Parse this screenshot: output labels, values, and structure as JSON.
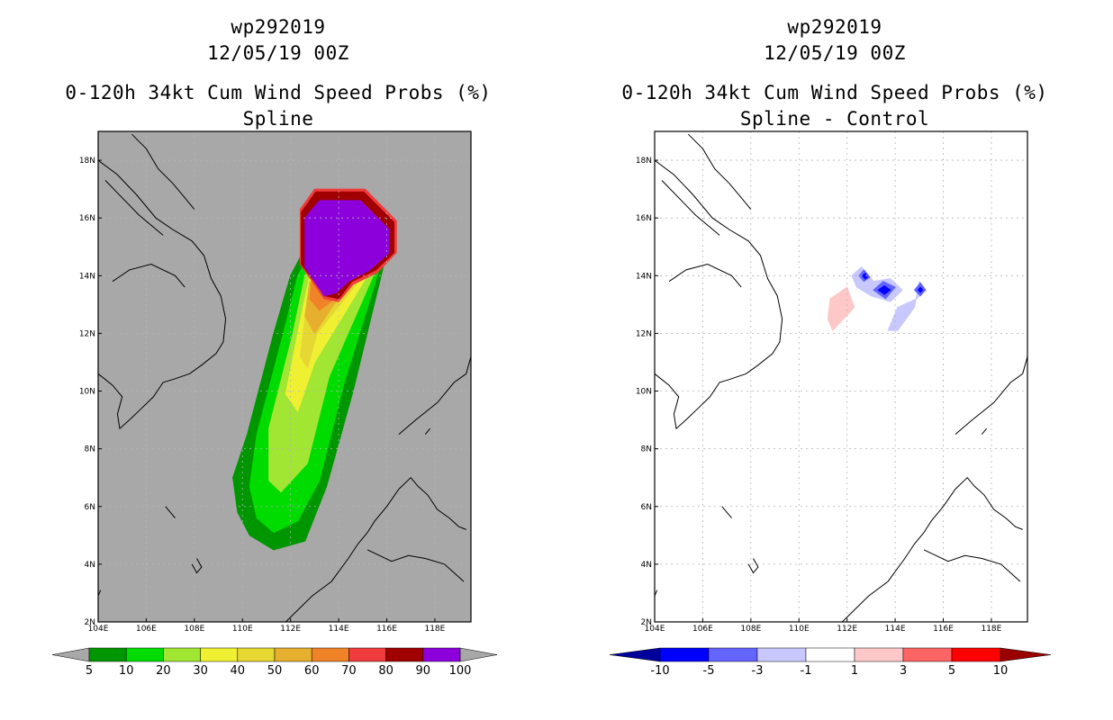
{
  "chart_data": [
    {
      "type": "heatmap",
      "id": "spline",
      "title": [
        "wp292019",
        "12/05/19 00Z",
        "0-120h 34kt Cum Wind Speed Probs (%)",
        "Spline"
      ],
      "xlabel": "",
      "ylabel": "",
      "xlim": [
        104,
        119.5
      ],
      "ylim": [
        2,
        19
      ],
      "x_ticks": [
        "104E",
        "106E",
        "108E",
        "110E",
        "112E",
        "114E",
        "116E",
        "118E"
      ],
      "y_ticks": [
        "2N",
        "4N",
        "6N",
        "8N",
        "10N",
        "12N",
        "14N",
        "16N",
        "18N"
      ],
      "background_color": "#a8a8a8",
      "grid": true,
      "colorbar": {
        "labels": [
          "5",
          "10",
          "20",
          "30",
          "40",
          "50",
          "60",
          "70",
          "80",
          "90",
          "100"
        ],
        "colors": [
          "#009600",
          "#00dc00",
          "#a0e632",
          "#f0f032",
          "#e6d732",
          "#e6af2d",
          "#f08228",
          "#f03c3c",
          "#a00000",
          "#8c00dc"
        ],
        "end_color": "#a8a8a8"
      },
      "contours": [
        {
          "level": 5,
          "color": "#009600",
          "points": [
            [
              114.3,
              14.8
            ],
            [
              116,
              14.8
            ],
            [
              114.6,
              10
            ],
            [
              113.5,
              6.7
            ],
            [
              112.6,
              4.8
            ],
            [
              111.3,
              4.5
            ],
            [
              110.3,
              5
            ],
            [
              109.8,
              5.8
            ],
            [
              109.6,
              7
            ],
            [
              110.2,
              8.5
            ],
            [
              111.3,
              12
            ],
            [
              112,
              14
            ],
            [
              113,
              15.6
            ],
            [
              114,
              15.4
            ]
          ]
        },
        {
          "level": 10,
          "color": "#00dc00",
          "points": [
            [
              114.3,
              14.7
            ],
            [
              115.9,
              14.8
            ],
            [
              114.2,
              10.2
            ],
            [
              113.2,
              6.9
            ],
            [
              112.3,
              5.5
            ],
            [
              111.3,
              5.1
            ],
            [
              110.6,
              5.6
            ],
            [
              110.3,
              6.7
            ],
            [
              110.6,
              8.5
            ],
            [
              111.7,
              12
            ],
            [
              112.3,
              14
            ],
            [
              113.2,
              15.3
            ],
            [
              114,
              15.2
            ]
          ]
        },
        {
          "level": 20,
          "color": "#a0e632",
          "points": [
            [
              114.3,
              14.5
            ],
            [
              115.8,
              14.7
            ],
            [
              113.6,
              10.5
            ],
            [
              112.7,
              7.5
            ],
            [
              111.6,
              6.5
            ],
            [
              111.1,
              6.9
            ],
            [
              111.1,
              8.7
            ],
            [
              112.1,
              12
            ],
            [
              112.6,
              14
            ],
            [
              113.4,
              15
            ],
            [
              114,
              15
            ]
          ]
        },
        {
          "level": 30,
          "color": "#f0f032",
          "points": [
            [
              114,
              14.3
            ],
            [
              115.7,
              14.7
            ],
            [
              113,
              11
            ],
            [
              112.3,
              9.3
            ],
            [
              111.8,
              9.9
            ],
            [
              112.3,
              12
            ],
            [
              112.8,
              14
            ],
            [
              113.5,
              14.7
            ]
          ]
        },
        {
          "level": 40,
          "color": "#e6d732",
          "points": [
            [
              113.8,
              14
            ],
            [
              115.6,
              14.6
            ],
            [
              113.1,
              12
            ],
            [
              112.7,
              10.8
            ],
            [
              112.4,
              11.2
            ],
            [
              112.6,
              12.5
            ],
            [
              113.1,
              14
            ]
          ]
        },
        {
          "level": 50,
          "color": "#e6af2d",
          "points": [
            [
              113.5,
              13.5
            ],
            [
              115.5,
              14.6
            ],
            [
              113.8,
              13
            ],
            [
              113,
              12
            ],
            [
              112.6,
              12.6
            ],
            [
              112.8,
              13.8
            ]
          ]
        },
        {
          "level": 60,
          "color": "#f08228",
          "points": [
            [
              113.4,
              13.4
            ],
            [
              115.4,
              14.6
            ],
            [
              114,
              13.3
            ],
            [
              113.2,
              12.8
            ],
            [
              112.8,
              13.2
            ],
            [
              112.9,
              14
            ]
          ]
        },
        {
          "level": 70,
          "color": "#f03c3c",
          "points": [
            [
              112.4,
              16.3
            ],
            [
              113,
              17
            ],
            [
              115.1,
              17
            ],
            [
              116.4,
              15.9
            ],
            [
              116.4,
              14.8
            ],
            [
              115.6,
              14.1
            ],
            [
              114.6,
              13.7
            ],
            [
              114,
              13.1
            ],
            [
              113.4,
              13.2
            ],
            [
              112.4,
              14.4
            ]
          ]
        },
        {
          "level": 80,
          "color": "#a00000",
          "points": [
            [
              112.45,
              16.2
            ],
            [
              113.05,
              16.9
            ],
            [
              115.05,
              16.9
            ],
            [
              116.3,
              15.85
            ],
            [
              116.3,
              14.8
            ],
            [
              115.55,
              14.2
            ],
            [
              114.55,
              13.8
            ],
            [
              114,
              13.2
            ],
            [
              113.45,
              13.3
            ],
            [
              112.45,
              14.4
            ]
          ]
        },
        {
          "level": 90,
          "color": "#8c00dc",
          "points": [
            [
              112.6,
              16
            ],
            [
              113.2,
              16.6
            ],
            [
              114.9,
              16.6
            ],
            [
              116.1,
              15.6
            ],
            [
              116.1,
              14.8
            ],
            [
              115.3,
              14.2
            ],
            [
              114.4,
              13.8
            ],
            [
              113.9,
              13.4
            ],
            [
              113.4,
              13.3
            ],
            [
              112.6,
              14.3
            ]
          ]
        }
      ]
    },
    {
      "type": "heatmap",
      "id": "difference",
      "title": [
        "wp292019",
        "12/05/19 00Z",
        "0-120h 34kt Cum Wind Speed Probs (%)",
        "Spline - Control"
      ],
      "xlabel": "",
      "ylabel": "",
      "xlim": [
        104,
        119.5
      ],
      "ylim": [
        2,
        19
      ],
      "x_ticks": [
        "104E",
        "106E",
        "108E",
        "110E",
        "112E",
        "114E",
        "116E",
        "118E"
      ],
      "y_ticks": [
        "2N",
        "4N",
        "6N",
        "8N",
        "10N",
        "12N",
        "14N",
        "16N",
        "18N"
      ],
      "background_color": "#ffffff",
      "grid": true,
      "colorbar": {
        "labels": [
          "-10",
          "-5",
          "-3",
          "-1",
          "1",
          "3",
          "5",
          "10"
        ],
        "colors": [
          "#0000ff",
          "#6464ff",
          "#c8c8ff",
          "#ffffff",
          "#ffc8c8",
          "#ff6464",
          "#ff0000"
        ],
        "end_colors": [
          "#00009b",
          "#9b0000"
        ]
      },
      "contours": [
        {
          "level": 1,
          "color": "#ffc8c8",
          "points": [
            [
              111.3,
              13.2
            ],
            [
              112,
              13.6
            ],
            [
              112.3,
              12.9
            ],
            [
              111.4,
              12.1
            ],
            [
              111.2,
              12.5
            ]
          ]
        },
        {
          "level": -1,
          "color": "#c8c8ff",
          "points": [
            [
              112.2,
              14
            ],
            [
              112.6,
              14.3
            ],
            [
              113.1,
              13.8
            ],
            [
              113.8,
              13.9
            ],
            [
              114.3,
              13.5
            ],
            [
              113.8,
              13.1
            ],
            [
              113,
              13.3
            ],
            [
              112.4,
              13.6
            ]
          ]
        },
        {
          "level": -1,
          "color": "#c8c8ff",
          "points": [
            [
              113.7,
              12.1
            ],
            [
              114.1,
              12.1
            ],
            [
              114.8,
              12.9
            ],
            [
              115,
              13.8
            ],
            [
              115.3,
              13.5
            ],
            [
              114.9,
              13.2
            ],
            [
              114.1,
              12.9
            ]
          ]
        },
        {
          "level": -3,
          "color": "#6464ff",
          "points": [
            [
              112.5,
              14
            ],
            [
              112.7,
              14.2
            ],
            [
              112.95,
              13.95
            ],
            [
              112.7,
              13.8
            ]
          ]
        },
        {
          "level": -3,
          "color": "#6464ff",
          "points": [
            [
              113.1,
              13.5
            ],
            [
              113.5,
              13.8
            ],
            [
              114,
              13.6
            ],
            [
              113.6,
              13.2
            ]
          ]
        },
        {
          "level": -3,
          "color": "#6464ff",
          "points": [
            [
              114.8,
              13.5
            ],
            [
              115.05,
              13.75
            ],
            [
              115.25,
              13.5
            ],
            [
              115.05,
              13.3
            ]
          ]
        },
        {
          "level": -5,
          "color": "#0000ff",
          "points": [
            [
              112.65,
              14
            ],
            [
              112.75,
              14.08
            ],
            [
              112.85,
              13.95
            ],
            [
              112.75,
              13.88
            ]
          ]
        },
        {
          "level": -5,
          "color": "#0000ff",
          "points": [
            [
              113.3,
              13.5
            ],
            [
              113.55,
              13.65
            ],
            [
              113.8,
              13.5
            ],
            [
              113.55,
              13.35
            ]
          ]
        },
        {
          "level": -5,
          "color": "#0000ff",
          "points": [
            [
              114.95,
              13.5
            ],
            [
              115.05,
              13.6
            ],
            [
              115.15,
              13.5
            ],
            [
              115.05,
              13.42
            ]
          ]
        }
      ]
    }
  ]
}
